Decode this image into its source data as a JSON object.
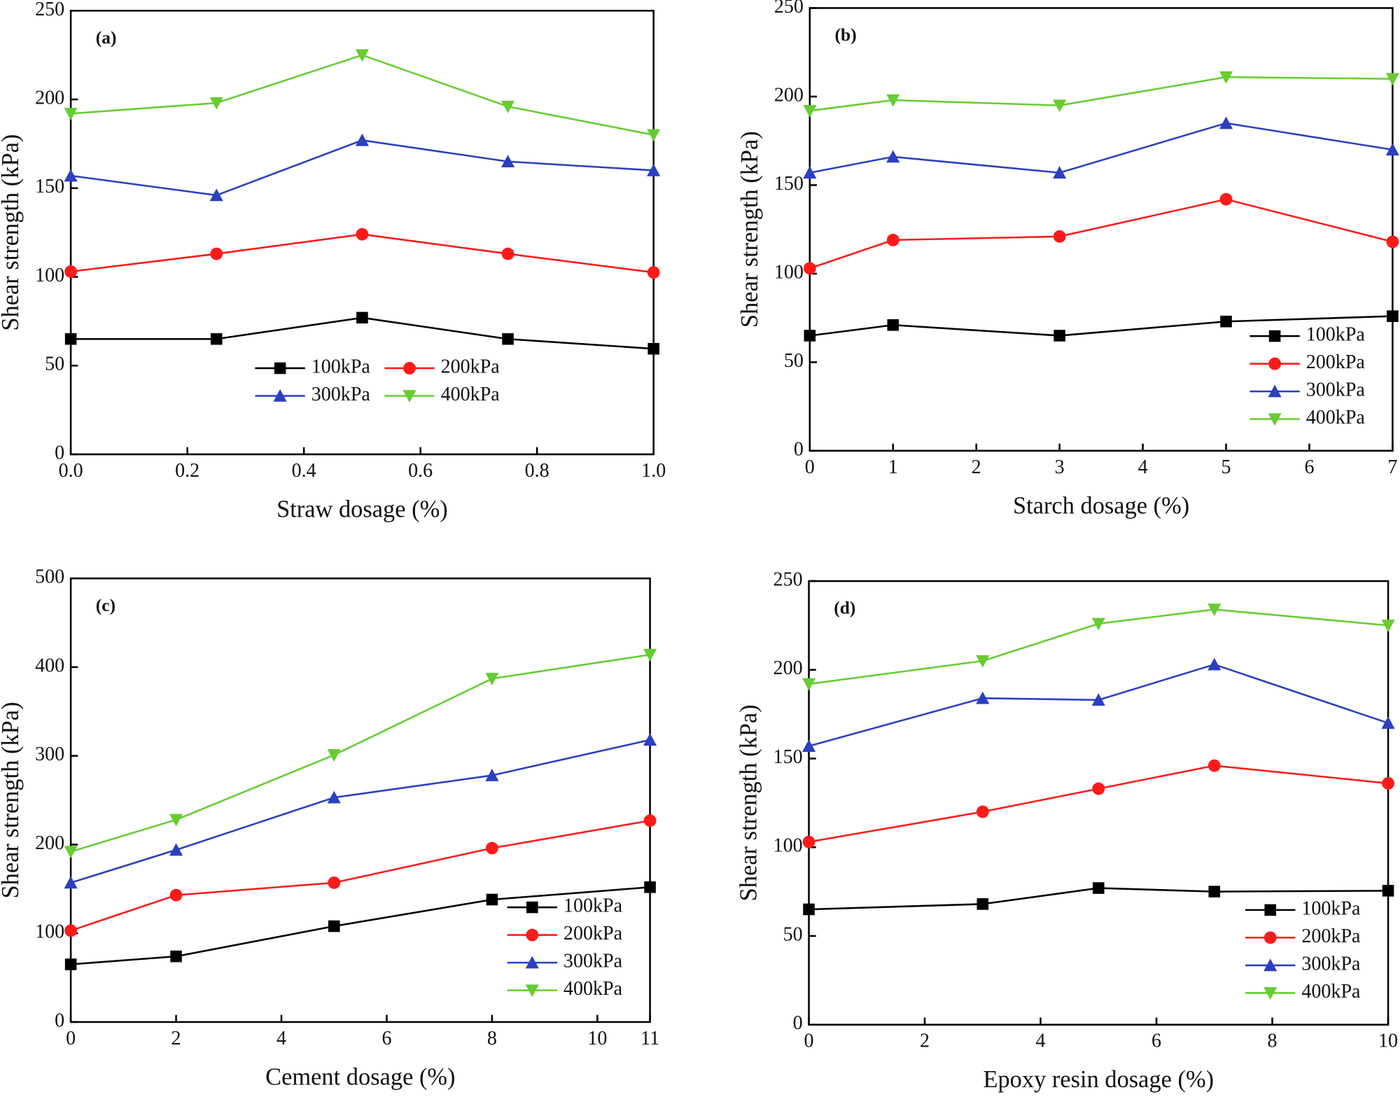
{
  "chart_data": [
    {
      "type": "line",
      "panel_label": "(a)",
      "xlabel": "Straw dosage (%)",
      "ylabel": "Shear strength (kPa)",
      "x": [
        0,
        0.25,
        0.5,
        0.75,
        1.0
      ],
      "xlim": [
        0,
        1
      ],
      "xticks": [
        {
          "value": 0,
          "label": "0.0"
        },
        0.2,
        0.4,
        0.6,
        0.8,
        {
          "value": 1,
          "label": "1.0"
        }
      ],
      "ylim": [
        0,
        250
      ],
      "yticks": [
        0,
        50,
        100,
        150,
        200,
        250
      ],
      "legend": "lower center",
      "legend_columns": 2,
      "series": [
        {
          "name": "100kPa",
          "color": "#000000",
          "marker": "square",
          "values": [
            65,
            65,
            77,
            65,
            59.5
          ]
        },
        {
          "name": "200kPa",
          "color": "#ff1a1a",
          "marker": "circle",
          "values": [
            103,
            113,
            124,
            113,
            102.5
          ]
        },
        {
          "name": "300kPa",
          "color": "#2b3fbf",
          "marker": "triangle-up",
          "values": [
            157,
            146,
            177,
            165,
            160
          ]
        },
        {
          "name": "400kPa",
          "color": "#66cc33",
          "marker": "triangle-down",
          "values": [
            192,
            198,
            225,
            196,
            180
          ]
        }
      ]
    },
    {
      "type": "line",
      "panel_label": "(b)",
      "xlabel": "Starch dosage (%)",
      "ylabel": "Shear strength (kPa)",
      "x": [
        0,
        1,
        3,
        5,
        7
      ],
      "xlim": [
        0,
        7
      ],
      "xticks": [
        0,
        1,
        2,
        3,
        4,
        5,
        6,
        7
      ],
      "ylim": [
        0,
        250
      ],
      "yticks": [
        0,
        50,
        100,
        150,
        200,
        250
      ],
      "legend": "lower right",
      "legend_columns": 1,
      "series": [
        {
          "name": "100kPa",
          "color": "#000000",
          "marker": "square",
          "values": [
            65,
            71,
            65,
            73,
            76
          ]
        },
        {
          "name": "200kPa",
          "color": "#ff1a1a",
          "marker": "circle",
          "values": [
            103,
            119,
            121,
            142,
            118
          ]
        },
        {
          "name": "300kPa",
          "color": "#2b3fbf",
          "marker": "triangle-up",
          "values": [
            157,
            166,
            157,
            185,
            170
          ]
        },
        {
          "name": "400kPa",
          "color": "#66cc33",
          "marker": "triangle-down",
          "values": [
            192,
            198,
            195,
            211,
            210
          ]
        }
      ]
    },
    {
      "type": "line",
      "panel_label": "(c)",
      "xlabel": "Cement dosage (%)",
      "ylabel": "Shear strength (kPa)",
      "x": [
        0,
        2,
        5,
        8,
        11
      ],
      "xlim": [
        0,
        11
      ],
      "xticks": [
        0,
        2,
        4,
        6,
        8,
        10,
        11
      ],
      "ylim": [
        0,
        500
      ],
      "yticks": [
        0,
        100,
        200,
        300,
        400,
        500
      ],
      "legend": "lower right",
      "legend_columns": 1,
      "series": [
        {
          "name": "100kPa",
          "color": "#000000",
          "marker": "square",
          "values": [
            65,
            74,
            108,
            138,
            152
          ]
        },
        {
          "name": "200kPa",
          "color": "#ff1a1a",
          "marker": "circle",
          "values": [
            103,
            143,
            157,
            196,
            227
          ]
        },
        {
          "name": "300kPa",
          "color": "#2b3fbf",
          "marker": "triangle-up",
          "values": [
            157,
            194,
            253,
            278,
            318
          ]
        },
        {
          "name": "400kPa",
          "color": "#66cc33",
          "marker": "triangle-down",
          "values": [
            192,
            228,
            301,
            387,
            414
          ]
        }
      ]
    },
    {
      "type": "line",
      "panel_label": "(d)",
      "xlabel": "Epoxy resin dosage (%)",
      "ylabel": "Shear strength (kPa)",
      "x": [
        0,
        3,
        5,
        7,
        10
      ],
      "xlim": [
        0,
        10
      ],
      "xticks": [
        0,
        2,
        4,
        6,
        8,
        10
      ],
      "ylim": [
        0,
        250
      ],
      "yticks": [
        0,
        50,
        100,
        150,
        200,
        250
      ],
      "legend": "lower right",
      "legend_columns": 1,
      "series": [
        {
          "name": "100kPa",
          "color": "#000000",
          "marker": "square",
          "values": [
            65,
            68,
            77,
            75,
            75.5
          ]
        },
        {
          "name": "200kPa",
          "color": "#ff1a1a",
          "marker": "circle",
          "values": [
            103,
            120,
            133,
            146,
            136
          ]
        },
        {
          "name": "300kPa",
          "color": "#2b3fbf",
          "marker": "triangle-up",
          "values": [
            157,
            184,
            183,
            203,
            170
          ]
        },
        {
          "name": "400kPa",
          "color": "#66cc33",
          "marker": "triangle-down",
          "values": [
            192,
            205,
            226,
            234,
            225
          ]
        }
      ]
    }
  ]
}
